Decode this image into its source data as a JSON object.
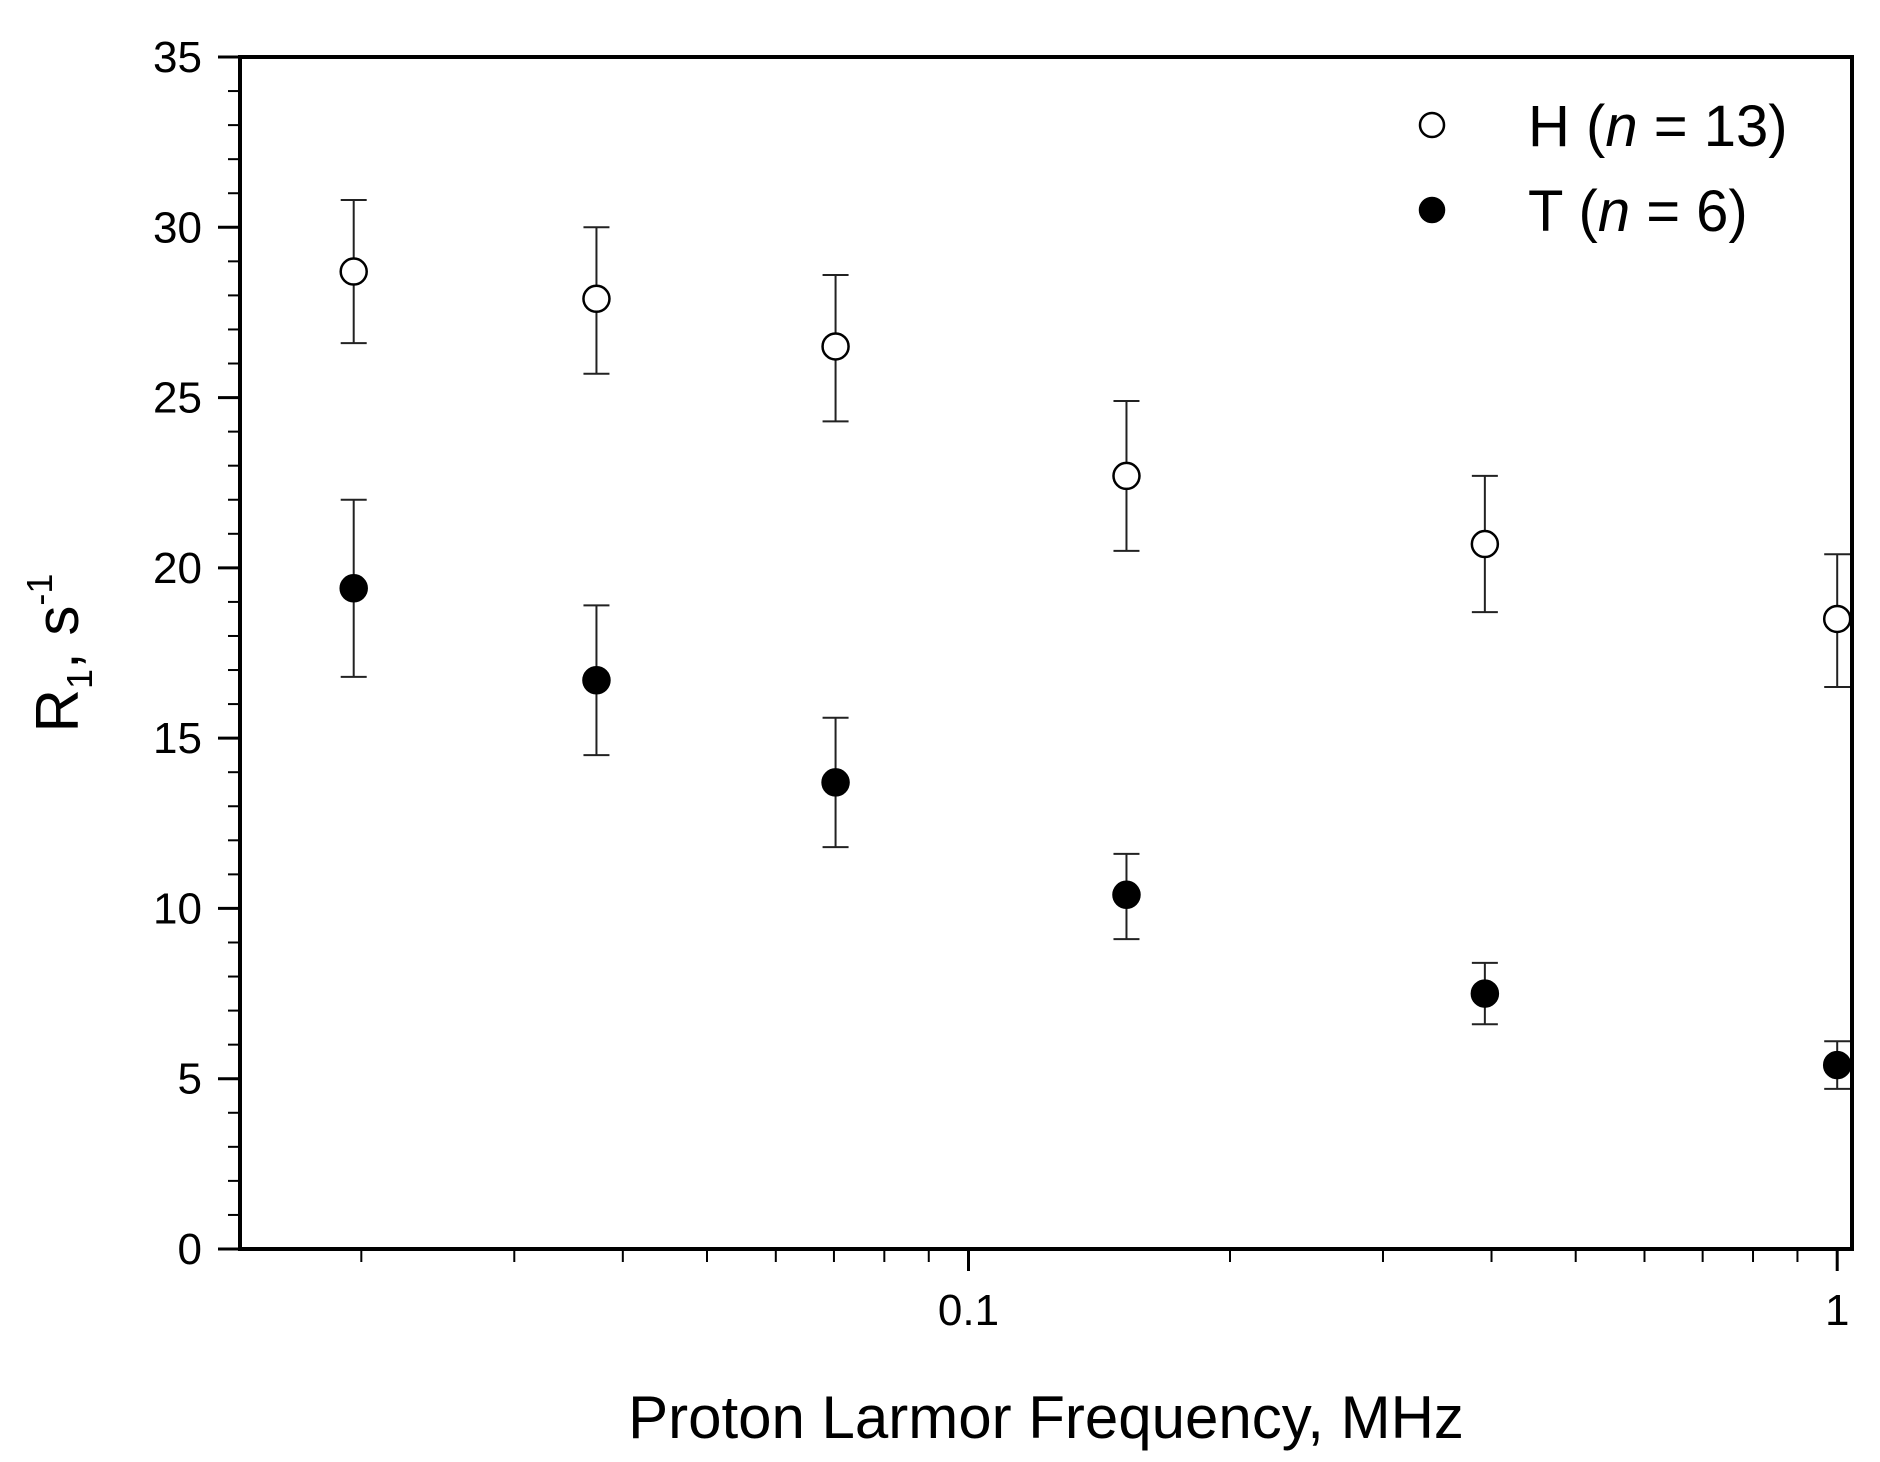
{
  "chart_data": {
    "type": "scatter",
    "title": "",
    "xlabel": "Proton Larmor Frequency, MHz",
    "ylabel": {
      "base": "R",
      "sub": "1",
      "mid": ", s",
      "sup": "-1"
    },
    "xscale": "log",
    "xlim": [
      0.0145,
      1.04
    ],
    "ylim": [
      0,
      35
    ],
    "x_ticks": [
      0.1,
      1
    ],
    "x_tick_labels": [
      "0.1",
      "1"
    ],
    "y_ticks": [
      0,
      5,
      10,
      15,
      20,
      25,
      30,
      35
    ],
    "y_tick_labels": [
      "0",
      "5",
      "10",
      "15",
      "20",
      "25",
      "30",
      "35"
    ],
    "legend_position": "top-right",
    "series": [
      {
        "legend": {
          "pre": "H (",
          "italic": "n",
          "post": " = 13)"
        },
        "marker": "open-circle",
        "x": [
          0.0196,
          0.0373,
          0.0703,
          0.152,
          0.393,
          1.0
        ],
        "y": [
          28.7,
          27.9,
          26.5,
          22.7,
          20.7,
          18.5
        ],
        "err_upper": [
          30.8,
          30.0,
          28.6,
          24.9,
          22.7,
          20.4
        ],
        "err_lower": [
          26.6,
          25.7,
          24.3,
          20.5,
          18.7,
          16.5
        ]
      },
      {
        "legend": {
          "pre": "T (",
          "italic": "n",
          "post": " = 6)"
        },
        "marker": "filled-circle",
        "x": [
          0.0196,
          0.0373,
          0.0703,
          0.152,
          0.393,
          1.0
        ],
        "y": [
          19.4,
          16.7,
          13.7,
          10.4,
          7.5,
          5.4
        ],
        "err_upper": [
          22.0,
          18.9,
          15.6,
          11.6,
          8.4,
          6.1
        ],
        "err_lower": [
          16.8,
          14.5,
          11.8,
          9.1,
          6.6,
          4.7
        ]
      }
    ]
  }
}
